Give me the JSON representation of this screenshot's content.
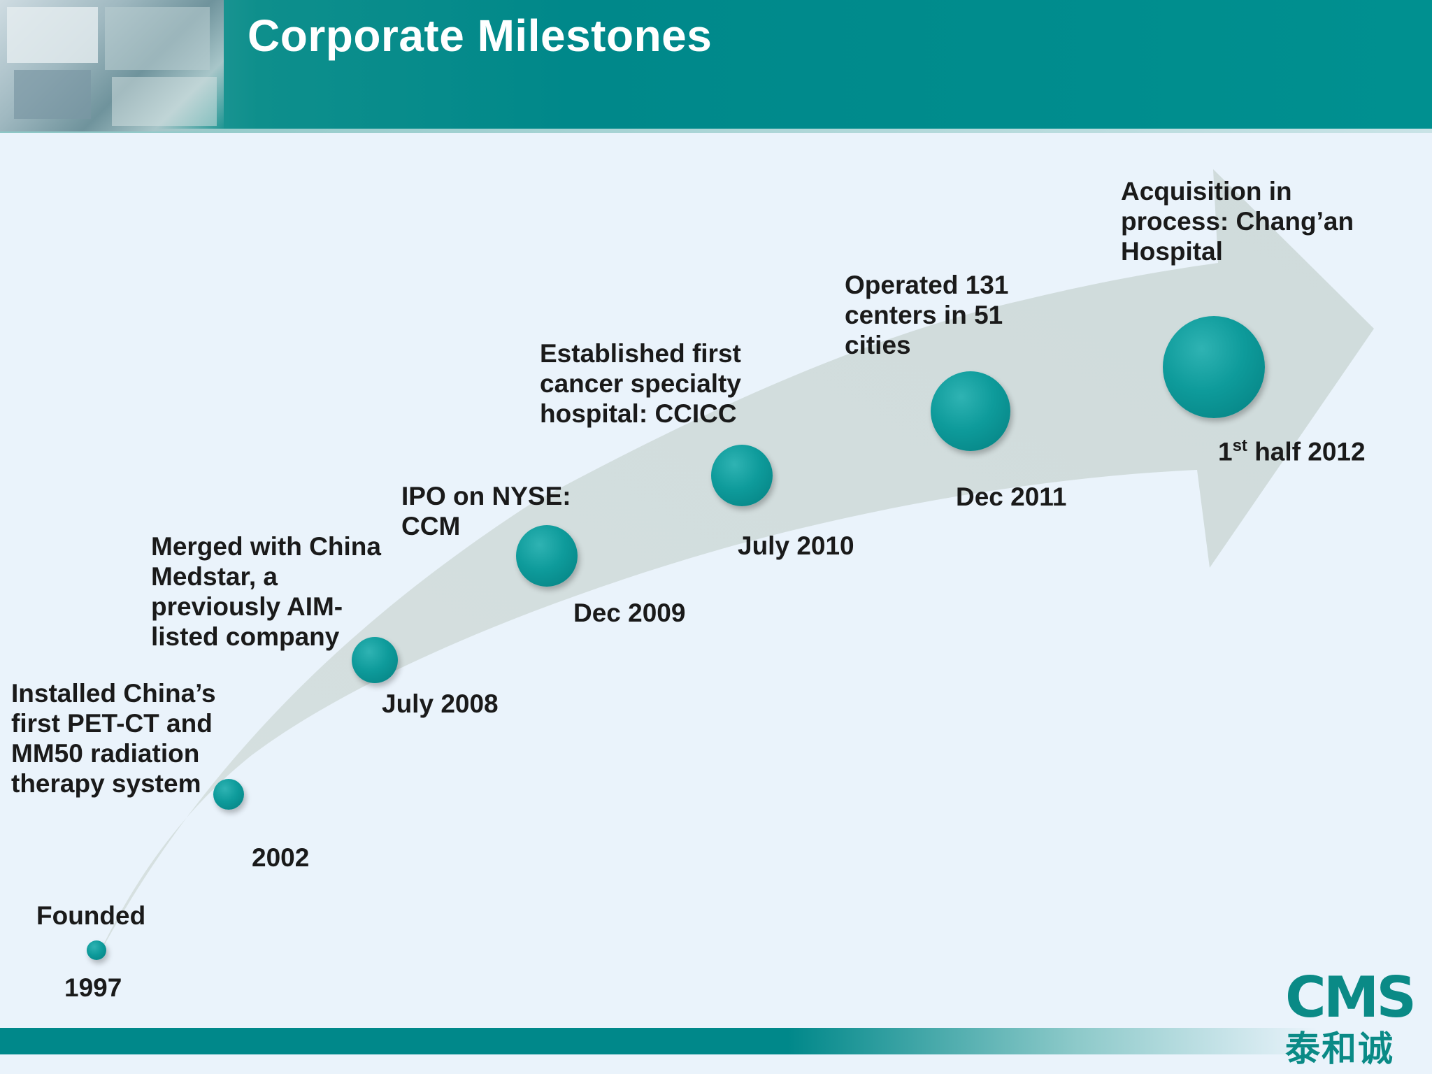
{
  "header": {
    "title": "Corporate Milestones"
  },
  "milestones": [
    {
      "date": "1997",
      "text": "Founded"
    },
    {
      "date": "2002",
      "text": "Installed China’s first PET-CT and MM50 radiation therapy system"
    },
    {
      "date": "July 2008",
      "text": "Merged with China Medstar, a previously AIM-listed company"
    },
    {
      "date": "Dec 2009",
      "text": "IPO on NYSE: CCM"
    },
    {
      "date": "July 2010",
      "text": "Established first cancer specialty hospital: CCICC"
    },
    {
      "date": "Dec 2011",
      "text": "Operated 131 centers in 51 cities"
    },
    {
      "date_prefix": "1",
      "date_sup": "st",
      "date_suffix": " half 2012",
      "text": "Acquisition in process: Chang’an Hospital"
    }
  ],
  "logo": {
    "en": "CMS",
    "cn": "泰和诚"
  },
  "colors": {
    "accent": "#00888a",
    "arrow": "#d3dfdf",
    "text": "#1a1a1a"
  }
}
